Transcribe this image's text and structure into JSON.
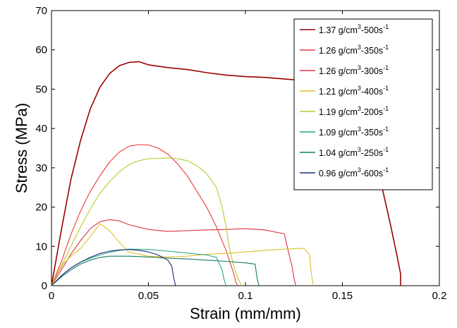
{
  "chart_data": {
    "type": "line",
    "title": "",
    "xlabel": "Strain (mm/mm)",
    "ylabel": "Stress (MPa)",
    "xlim": [
      0,
      0.2
    ],
    "ylim": [
      0,
      70
    ],
    "x_ticks": [
      "0",
      "0.05",
      "0.1",
      "0.15",
      "0.2"
    ],
    "y_ticks": [
      "0",
      "10",
      "20",
      "30",
      "40",
      "50",
      "60",
      "70"
    ],
    "grid": false,
    "legend_position": "top-right",
    "series": [
      {
        "name": "1.37 g/cm3-500s-1",
        "density": "1.37 g/cm",
        "rate": "-500s",
        "color": "#990000",
        "x": [
          0,
          0.005,
          0.01,
          0.015,
          0.02,
          0.025,
          0.03,
          0.035,
          0.04,
          0.045,
          0.05,
          0.06,
          0.07,
          0.08,
          0.09,
          0.1,
          0.11,
          0.12,
          0.13,
          0.14,
          0.15,
          0.16,
          0.165,
          0.17,
          0.175,
          0.178,
          0.18,
          0.18
        ],
        "y": [
          0,
          14,
          27,
          37,
          45,
          50.5,
          54,
          56,
          56.8,
          57,
          56.2,
          55.5,
          55,
          54.2,
          53.6,
          53.2,
          53,
          52.6,
          52.2,
          51.5,
          50,
          47,
          40,
          26,
          15,
          8,
          3,
          0
        ]
      },
      {
        "name": "1.26 g/cm3-350s-1",
        "density": "1.26 g/cm",
        "rate": "-350s",
        "color": "#ee3a3a",
        "x": [
          0,
          0.005,
          0.01,
          0.015,
          0.02,
          0.025,
          0.03,
          0.035,
          0.04,
          0.045,
          0.05,
          0.055,
          0.06,
          0.065,
          0.07,
          0.075,
          0.08,
          0.085,
          0.09,
          0.092,
          0.094,
          0.095,
          0.096
        ],
        "y": [
          0,
          6,
          13,
          19,
          24,
          28,
          31.5,
          34,
          35.5,
          35.9,
          35.8,
          35,
          33.5,
          31,
          28,
          24,
          20,
          15,
          9,
          6,
          3,
          1,
          0
        ]
      },
      {
        "name": "1.26 g/cm3-300s-1",
        "density": "1.26 g/cm",
        "rate": "-300s",
        "color": "#dd3344",
        "x": [
          0,
          0.005,
          0.01,
          0.015,
          0.02,
          0.025,
          0.03,
          0.035,
          0.04,
          0.05,
          0.06,
          0.07,
          0.08,
          0.09,
          0.1,
          0.11,
          0.12,
          0.122,
          0.124,
          0.125,
          0.126
        ],
        "y": [
          0,
          4,
          8,
          11.5,
          14.5,
          16.3,
          16.8,
          16.5,
          15.5,
          14.3,
          13.8,
          14,
          14.2,
          14.3,
          14.5,
          14.2,
          13.2,
          9,
          5,
          2,
          0
        ]
      },
      {
        "name": "1.21 g/cm3-400s-1",
        "density": "1.21 g/cm",
        "rate": "-400s",
        "color": "#e0c22a",
        "x": [
          0,
          0.003,
          0.006,
          0.01,
          0.015,
          0.02,
          0.025,
          0.03,
          0.035,
          0.04,
          0.05,
          0.06,
          0.07,
          0.08,
          0.09,
          0.1,
          0.11,
          0.12,
          0.13,
          0.133,
          0.134,
          0.135
        ],
        "y": [
          0,
          3,
          5.5,
          7.5,
          9.5,
          12.5,
          15.8,
          14,
          11,
          8.5,
          7.5,
          7.3,
          7.5,
          8,
          8.2,
          8.6,
          9,
          9.3,
          9.5,
          8,
          3,
          0
        ]
      },
      {
        "name": "1.19 g/cm3-200s-1",
        "density": "1.19 g/cm",
        "rate": "-200s",
        "color": "#b8cc28",
        "x": [
          0,
          0.005,
          0.01,
          0.015,
          0.02,
          0.025,
          0.03,
          0.035,
          0.04,
          0.045,
          0.05,
          0.055,
          0.06,
          0.065,
          0.07,
          0.075,
          0.08,
          0.085,
          0.088,
          0.09,
          0.092,
          0.094,
          0.096,
          0.098
        ],
        "y": [
          0,
          5,
          10,
          15,
          19.5,
          23.5,
          26.5,
          29,
          30.8,
          31.8,
          32.3,
          32.4,
          32.5,
          32.3,
          31.8,
          30.5,
          28.5,
          25,
          20,
          15,
          9,
          5,
          2,
          0
        ]
      },
      {
        "name": "1.09 g/cm3-350s-1",
        "density": "1.09 g/cm",
        "rate": "-350s",
        "color": "#2aa58a",
        "x": [
          0,
          0.005,
          0.01,
          0.015,
          0.02,
          0.025,
          0.03,
          0.035,
          0.04,
          0.05,
          0.06,
          0.07,
          0.08,
          0.085,
          0.088,
          0.089,
          0.09
        ],
        "y": [
          0,
          2.5,
          4.5,
          6,
          7,
          7.8,
          8.5,
          9,
          9.3,
          9.2,
          8.8,
          8.3,
          7.8,
          7.2,
          4,
          1.5,
          0
        ]
      },
      {
        "name": "1.04 g/cm3-250s-1",
        "density": "1.04 g/cm",
        "rate": "-250s",
        "color": "#157a6a",
        "x": [
          0,
          0.005,
          0.01,
          0.015,
          0.02,
          0.025,
          0.03,
          0.04,
          0.05,
          0.06,
          0.07,
          0.08,
          0.09,
          0.1,
          0.105,
          0.106,
          0.107
        ],
        "y": [
          0,
          2.2,
          4,
          5.5,
          6.5,
          7.2,
          7.5,
          7.5,
          7.3,
          7,
          6.8,
          6.5,
          6.2,
          5.8,
          5.5,
          2,
          0
        ]
      },
      {
        "name": "0.96 g/cm3-600s-1",
        "density": "0.96 g/cm",
        "rate": "-600s",
        "color": "#1a2f6e",
        "x": [
          0,
          0.005,
          0.01,
          0.015,
          0.02,
          0.025,
          0.03,
          0.035,
          0.04,
          0.045,
          0.05,
          0.055,
          0.06,
          0.062,
          0.063,
          0.064
        ],
        "y": [
          0,
          2.5,
          4.5,
          6,
          7.2,
          8.2,
          8.8,
          9.1,
          9.2,
          9,
          8.6,
          7.8,
          6.5,
          5,
          2,
          0
        ]
      }
    ]
  }
}
